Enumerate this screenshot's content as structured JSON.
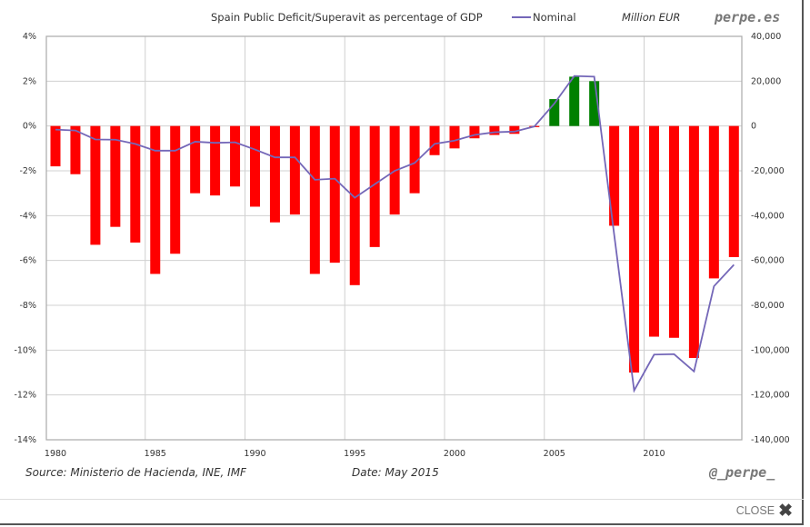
{
  "chart_data": {
    "type": "bar",
    "title": "Spain Public Deficit/Superavit as percentage of GDP",
    "brand": "perpe.es",
    "right_axis_unit": "Million EUR",
    "legend": [
      {
        "name": "Nominal",
        "type": "line",
        "color": "#7467b8"
      }
    ],
    "x": [
      1980,
      1981,
      1982,
      1983,
      1984,
      1985,
      1986,
      1987,
      1988,
      1989,
      1990,
      1991,
      1992,
      1993,
      1994,
      1995,
      1996,
      1997,
      1998,
      1999,
      2000,
      2001,
      2002,
      2003,
      2004,
      2005,
      2006,
      2007,
      2008,
      2009,
      2010,
      2011,
      2012,
      2013,
      2014
    ],
    "x_ticks": [
      "1980",
      "1985",
      "1990",
      "1995",
      "2000",
      "2005",
      "2010"
    ],
    "series": [
      {
        "name": "Deficit/Superavit % of GDP",
        "type": "bar",
        "axis": "left",
        "positive_color": "#008000",
        "negative_color": "#ff0000",
        "values": [
          -1.8,
          -2.15,
          -5.3,
          -4.5,
          -5.2,
          -6.6,
          -5.7,
          -3.0,
          -3.1,
          -2.7,
          -3.6,
          -4.3,
          -3.95,
          -6.6,
          -6.1,
          -7.1,
          -5.4,
          -3.95,
          -3.0,
          -1.3,
          -1.0,
          -0.55,
          -0.4,
          -0.35,
          -0.05,
          1.2,
          2.2,
          2.0,
          -4.45,
          -11.0,
          -9.4,
          -9.45,
          -10.35,
          -6.8,
          -5.85
        ]
      },
      {
        "name": "Nominal",
        "type": "line",
        "axis": "right",
        "color": "#7467b8",
        "values": [
          -1600,
          -2000,
          -6000,
          -6100,
          -8000,
          -11000,
          -11000,
          -7000,
          -7500,
          -7300,
          -10500,
          -14000,
          -14000,
          -24000,
          -23500,
          -32000,
          -26000,
          -20000,
          -16500,
          -8000,
          -6500,
          -4000,
          -2800,
          -2500,
          -200,
          10000,
          22300,
          22000,
          -48500,
          -118000,
          -102000,
          -101800,
          -109500,
          -71500,
          -61900
        ]
      }
    ],
    "y_left": {
      "range": [
        -14,
        4
      ],
      "ticks": [
        "4%",
        "2%",
        "0%",
        "-2%",
        "-4%",
        "-6%",
        "-8%",
        "-10%",
        "-12%",
        "-14%"
      ]
    },
    "y_right": {
      "range": [
        -140000,
        40000
      ],
      "ticks": [
        "40,000",
        "20,000",
        "0",
        "-20,000",
        "-40,000",
        "-60,000",
        "-80,000",
        "-100,000",
        "-120,000",
        "-140,000"
      ]
    },
    "grid": true,
    "legend_position": "top-right",
    "source": "Source: Ministerio de Hacienda, INE, IMF",
    "date": "Date: May 2015",
    "author": "@_perpe_"
  },
  "ui": {
    "close_label": "CLOSE",
    "close_icon": "✖"
  }
}
